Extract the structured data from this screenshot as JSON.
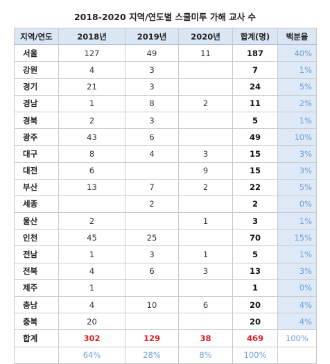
{
  "title": "2018-2020 지역/연도별 스쿨미투 가해 교사 수",
  "headers": [
    "지역/연도",
    "2018년",
    "2019년",
    "2020년",
    "합계(명)",
    "백분율"
  ],
  "rows": [
    {
      "region": "서울",
      "y2018": "127",
      "y2019": "49",
      "y2020": "11",
      "total": "187",
      "pct": "40%"
    },
    {
      "region": "강원",
      "y2018": "4",
      "y2019": "3",
      "y2020": "",
      "total": "7",
      "pct": "1%"
    },
    {
      "region": "경기",
      "y2018": "21",
      "y2019": "3",
      "y2020": "",
      "total": "24",
      "pct": "5%"
    },
    {
      "region": "경남",
      "y2018": "1",
      "y2019": "8",
      "y2020": "2",
      "total": "11",
      "pct": "2%"
    },
    {
      "region": "경북",
      "y2018": "2",
      "y2019": "3",
      "y2020": "",
      "total": "5",
      "pct": "1%"
    },
    {
      "region": "광주",
      "y2018": "43",
      "y2019": "6",
      "y2020": "",
      "total": "49",
      "pct": "10%"
    },
    {
      "region": "대구",
      "y2018": "8",
      "y2019": "4",
      "y2020": "3",
      "total": "15",
      "pct": "3%"
    },
    {
      "region": "대전",
      "y2018": "6",
      "y2019": "",
      "y2020": "9",
      "total": "15",
      "pct": "3%"
    },
    {
      "region": "부산",
      "y2018": "13",
      "y2019": "7",
      "y2020": "2",
      "total": "22",
      "pct": "5%"
    },
    {
      "region": "세종",
      "y2018": "",
      "y2019": "2",
      "y2020": "",
      "total": "2",
      "pct": "0%"
    },
    {
      "region": "울산",
      "y2018": "2",
      "y2019": "",
      "y2020": "1",
      "total": "3",
      "pct": "1%"
    },
    {
      "region": "인천",
      "y2018": "45",
      "y2019": "25",
      "y2020": "",
      "total": "70",
      "pct": "15%"
    },
    {
      "region": "전남",
      "y2018": "1",
      "y2019": "3",
      "y2020": "1",
      "total": "5",
      "pct": "1%"
    },
    {
      "region": "전북",
      "y2018": "4",
      "y2019": "6",
      "y2020": "3",
      "total": "13",
      "pct": "3%"
    },
    {
      "region": "제주",
      "y2018": "1",
      "y2019": "",
      "y2020": "",
      "total": "1",
      "pct": "0%"
    },
    {
      "region": "충남",
      "y2018": "4",
      "y2019": "10",
      "y2020": "6",
      "total": "20",
      "pct": "4%"
    },
    {
      "region": "충북",
      "y2018": "20",
      "y2019": "",
      "y2020": "",
      "total": "20",
      "pct": "4%"
    }
  ],
  "total_row": {
    "region": "합계",
    "y2018": "302",
    "y2019": "129",
    "y2020": "38",
    "total": "469",
    "pct": "100%"
  },
  "share_row": {
    "region": "",
    "y2018": "64%",
    "y2019": "28%",
    "y2020": "8%",
    "total": "100%",
    "pct": ""
  },
  "colors": {
    "header_bg": "#dbe6f4",
    "pct_bg": "#dde9f7",
    "pct_text": "#6f9fd3",
    "total_text": "#e01b24"
  }
}
